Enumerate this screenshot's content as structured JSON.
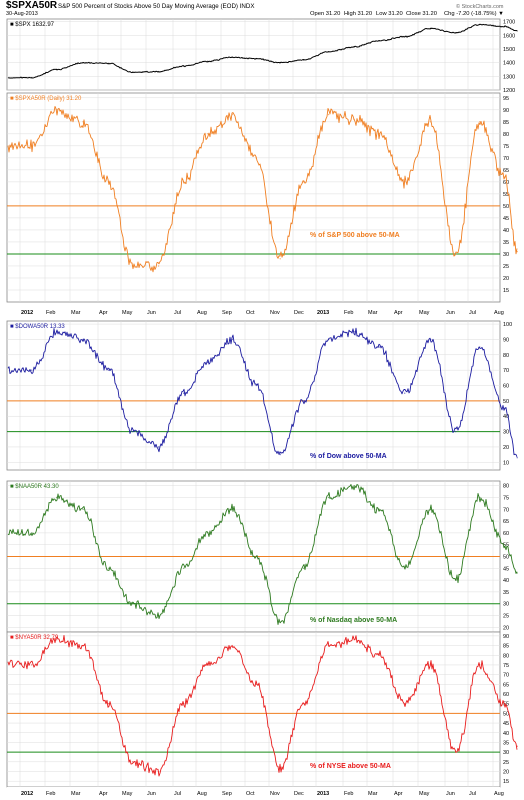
{
  "header": {
    "symbol": "$SPXA50R",
    "description": "S&P 500 Percent of Stocks Above 50 Day Moving Average (EOD) INDX",
    "date": "30-Aug-2013",
    "watermark": "© StockCharts.com",
    "open": "Open 31.20",
    "high": "High 31.20",
    "low": "Low 31.20",
    "close": "Close 31.20",
    "change": "Chg -7.20 (-18.75%) ▼"
  },
  "date_axis": {
    "labels": [
      "2012",
      "Feb",
      "Mar",
      "Apr",
      "May",
      "Jun",
      "Jul",
      "Aug",
      "Sep",
      "Oct",
      "Nov",
      "Dec",
      "2013",
      "Feb",
      "Mar",
      "Apr",
      "May",
      "Jun",
      "Jul",
      "Aug"
    ],
    "bold": [
      "2012",
      "2013"
    ]
  },
  "colors": {
    "spx": "#000000",
    "sp500": "#f07f22",
    "dow": "#1c1ca0",
    "nasdaq": "#2d7a1f",
    "nyse": "#e81c1c",
    "ref_orange": "#f07f22",
    "ref_green": "#1a8c1a",
    "grid": "#dcdcdc"
  },
  "chart_data": [
    {
      "type": "line",
      "legend": "■ $SPX 1632.97",
      "y_ticks": [
        1700,
        1600,
        1500,
        1400,
        1300,
        1200
      ],
      "ylim": [
        1200,
        1720
      ],
      "grid": true,
      "reference_lines": [],
      "annotation": "",
      "x": [
        "2012-01",
        "2012-02",
        "2012-03",
        "2012-04",
        "2012-05",
        "2012-06",
        "2012-07",
        "2012-08",
        "2012-09",
        "2012-10",
        "2012-11",
        "2012-12",
        "2013-01",
        "2013-02",
        "2013-03",
        "2013-04",
        "2013-05",
        "2013-06",
        "2013-07",
        "2013-08",
        "2013-08-30"
      ],
      "values": [
        1290,
        1350,
        1400,
        1395,
        1330,
        1335,
        1375,
        1410,
        1440,
        1430,
        1400,
        1420,
        1480,
        1515,
        1560,
        1590,
        1650,
        1620,
        1680,
        1665,
        1633
      ]
    },
    {
      "type": "line",
      "legend": "■ $SPXA50R (Daily) 31.20",
      "y_ticks": [
        95,
        90,
        85,
        80,
        75,
        70,
        65,
        60,
        55,
        50,
        45,
        40,
        35,
        30,
        25,
        20,
        15
      ],
      "ylim": [
        10,
        97
      ],
      "grid": true,
      "reference_lines": [
        50,
        30
      ],
      "annotation": "% of S&P 500 above 50-MA",
      "x": [
        "2012-01",
        "2012-02",
        "2012-03",
        "2012-04",
        "2012-05",
        "2012-06",
        "2012-07",
        "2012-08",
        "2012-09",
        "2012-10",
        "2012-11",
        "2012-12",
        "2013-01",
        "2013-02",
        "2013-03",
        "2013-04",
        "2013-05",
        "2013-06",
        "2013-07",
        "2013-08",
        "2013-08-30"
      ],
      "values": [
        75,
        90,
        85,
        60,
        25,
        25,
        60,
        80,
        88,
        70,
        28,
        60,
        88,
        86,
        80,
        60,
        85,
        30,
        85,
        62,
        31
      ]
    },
    {
      "type": "line",
      "legend": "■ $DOWA50R 13.33",
      "y_ticks": [
        100,
        90,
        80,
        70,
        60,
        50,
        40,
        30,
        20,
        10
      ],
      "ylim": [
        5,
        102
      ],
      "grid": true,
      "reference_lines": [
        50,
        30
      ],
      "annotation": "% of Dow above 50-MA",
      "x": [
        "2012-01",
        "2012-02",
        "2012-03",
        "2012-04",
        "2012-05",
        "2012-06",
        "2012-07",
        "2012-08",
        "2012-09",
        "2012-10",
        "2012-11",
        "2012-12",
        "2013-01",
        "2013-02",
        "2013-03",
        "2013-04",
        "2013-05",
        "2013-06",
        "2013-07",
        "2013-08",
        "2013-08-30"
      ],
      "values": [
        70,
        95,
        90,
        70,
        30,
        20,
        55,
        75,
        90,
        60,
        15,
        50,
        90,
        95,
        85,
        55,
        90,
        30,
        85,
        45,
        13
      ]
    },
    {
      "type": "line",
      "legend": "■ $NAA50R 43.30",
      "y_ticks": [
        80,
        75,
        70,
        65,
        60,
        55,
        50,
        45,
        40,
        35,
        30,
        25,
        20
      ],
      "ylim": [
        18,
        82
      ],
      "grid": true,
      "reference_lines": [
        50,
        30
      ],
      "annotation": "% of Nasdaq above 50-MA",
      "x": [
        "2012-01",
        "2012-02",
        "2012-03",
        "2012-04",
        "2012-05",
        "2012-06",
        "2012-07",
        "2012-08",
        "2012-09",
        "2012-10",
        "2012-11",
        "2012-12",
        "2013-01",
        "2013-02",
        "2013-03",
        "2013-04",
        "2013-05",
        "2013-06",
        "2013-07",
        "2013-08",
        "2013-08-30"
      ],
      "values": [
        60,
        75,
        70,
        45,
        30,
        25,
        45,
        60,
        70,
        50,
        22,
        45,
        75,
        80,
        70,
        45,
        70,
        40,
        75,
        55,
        43
      ]
    },
    {
      "type": "line",
      "legend": "■ $NYA50R 32.79",
      "y_ticks": [
        90,
        85,
        80,
        75,
        70,
        65,
        60,
        55,
        50,
        45,
        40,
        35,
        30,
        25,
        20,
        15
      ],
      "ylim": [
        12,
        92
      ],
      "grid": true,
      "reference_lines": [
        50,
        30
      ],
      "annotation": "% of NYSE above 50-MA",
      "x": [
        "2012-01",
        "2012-02",
        "2012-03",
        "2012-04",
        "2012-05",
        "2012-06",
        "2012-07",
        "2012-08",
        "2012-09",
        "2012-10",
        "2012-11",
        "2012-12",
        "2013-01",
        "2013-02",
        "2013-03",
        "2013-04",
        "2013-05",
        "2013-06",
        "2013-07",
        "2013-08",
        "2013-08-30"
      ],
      "values": [
        75,
        88,
        85,
        55,
        25,
        20,
        55,
        75,
        85,
        65,
        22,
        55,
        85,
        88,
        80,
        55,
        75,
        30,
        75,
        55,
        33
      ]
    }
  ]
}
